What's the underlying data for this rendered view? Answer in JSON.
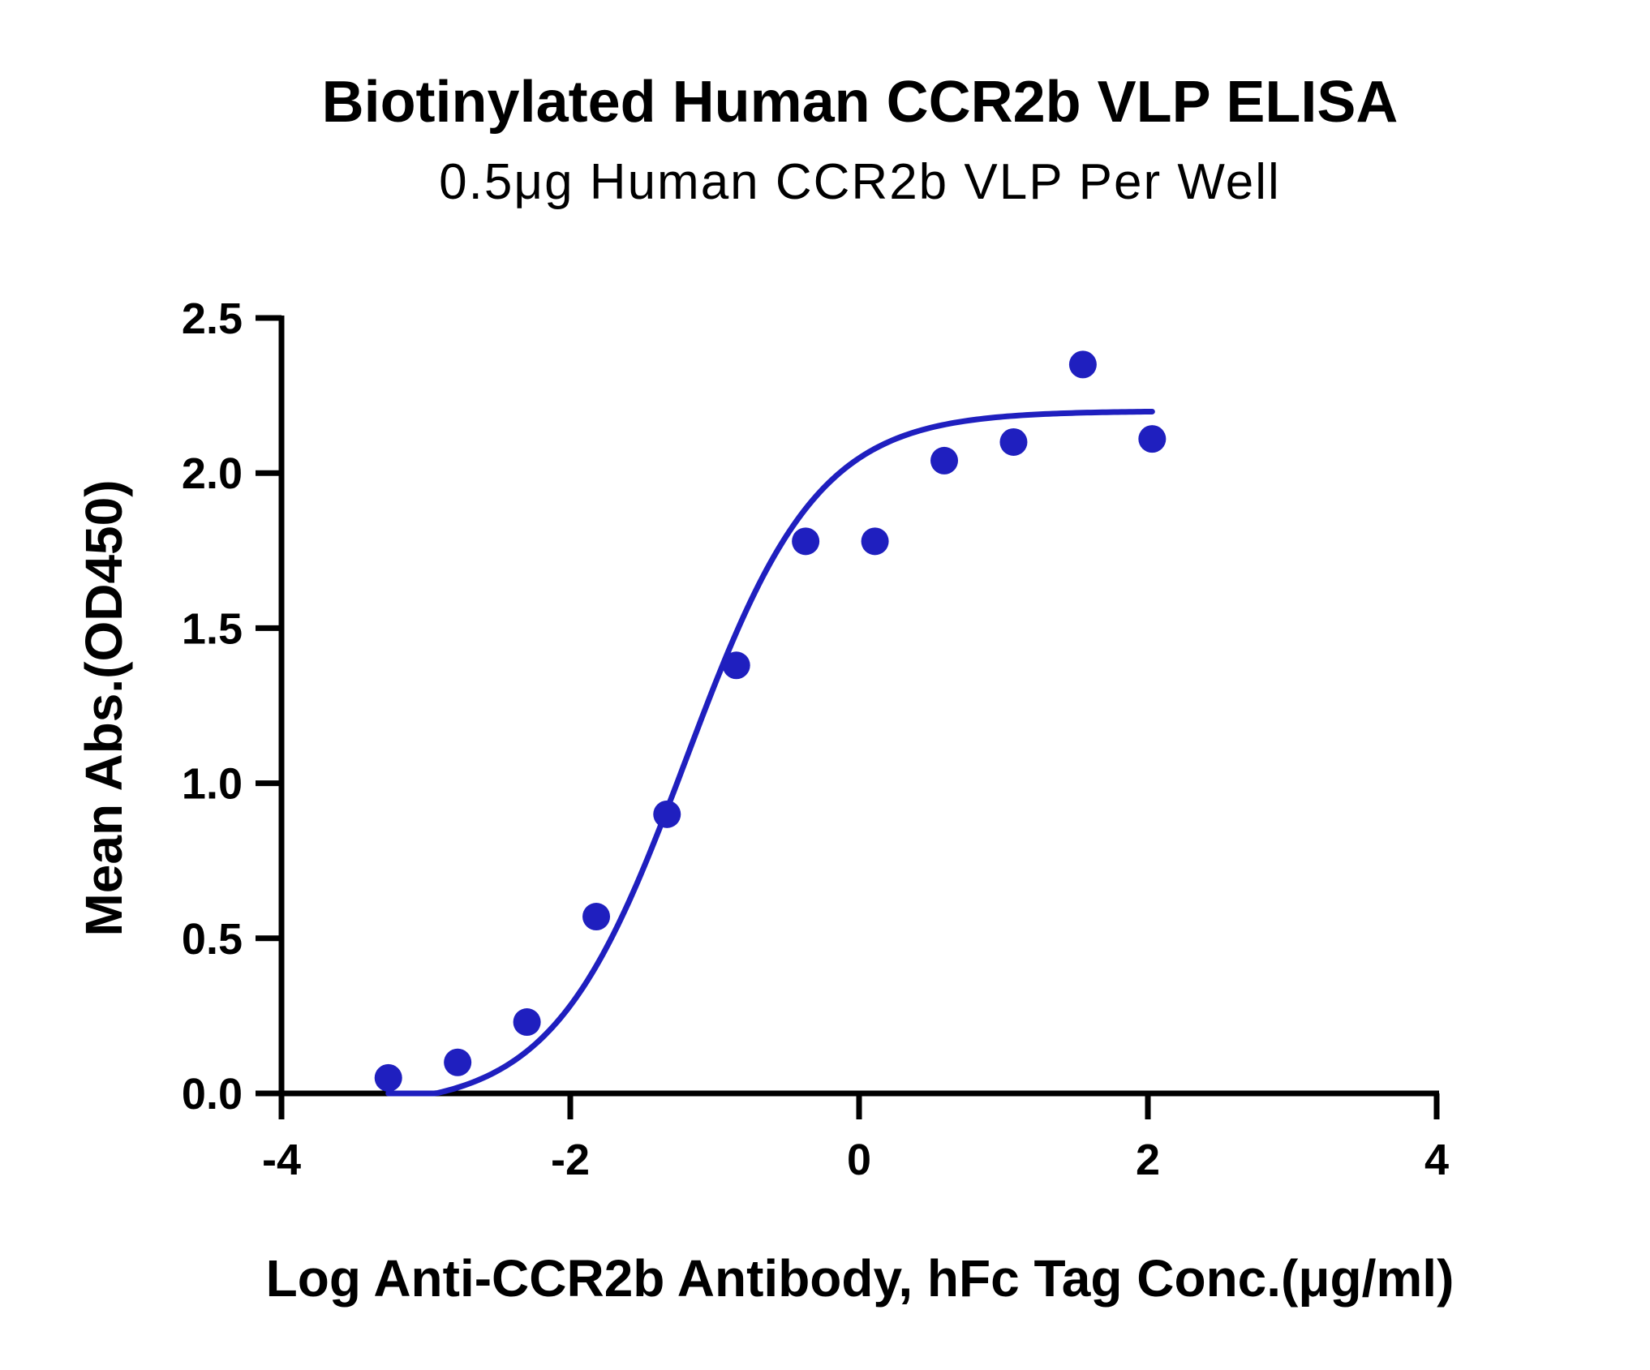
{
  "chart_data": {
    "type": "scatter",
    "title": "Biotinylated Human CCR2b VLP ELISA",
    "subtitle": "0.5μg Human CCR2b VLP Per Well",
    "xlabel": "Log Anti-CCR2b Antibody, hFc Tag Conc.(μg/ml)",
    "ylabel": "Mean Abs.(OD450)",
    "xlim": [
      -4,
      4
    ],
    "ylim": [
      0,
      2.5
    ],
    "x_ticks": [
      -4,
      -2,
      0,
      2,
      4
    ],
    "x_tick_labels": [
      "-4",
      "-2",
      "0",
      "2",
      "4"
    ],
    "y_ticks": [
      0,
      0.5,
      1.0,
      1.5,
      2.0,
      2.5
    ],
    "y_tick_labels": [
      "0.0",
      "0.5",
      "1.0",
      "1.5",
      "2.0",
      "2.5"
    ],
    "grid": false,
    "legend": "none",
    "series": [
      {
        "x": [
          -3.26,
          -2.78,
          -2.3,
          -1.82,
          -1.33,
          -0.85,
          -0.37,
          0.11,
          0.59,
          1.07,
          1.55,
          2.03
        ],
        "y": [
          0.05,
          0.1,
          0.23,
          0.57,
          0.9,
          1.38,
          1.78,
          1.78,
          2.04,
          2.1,
          2.35,
          2.11
        ],
        "color": "#1f1fbf",
        "marker": "circle"
      }
    ],
    "fit_curve": {
      "type": "4PL",
      "bottom": -0.05,
      "top": 2.2,
      "logEC50": -1.2,
      "hill": 0.95,
      "x_range": [
        -3.26,
        2.03
      ],
      "color": "#1f1fbf"
    }
  }
}
